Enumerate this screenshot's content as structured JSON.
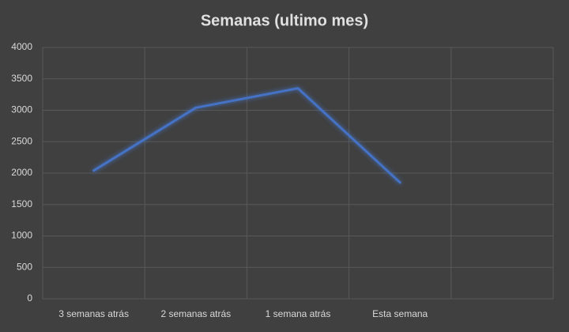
{
  "chart_data": {
    "type": "line",
    "title": "Semanas (ultimo mes)",
    "categories": [
      "3 semanas atrás",
      "2 semanas atrás",
      "1 semana atrás",
      "Esta semana",
      null
    ],
    "series": [
      {
        "name": "Semanas",
        "color": "#4472c4",
        "values": [
          2040,
          3040,
          3350,
          1850,
          null
        ]
      }
    ],
    "ylim": [
      0,
      4000
    ],
    "yticks": [
      0,
      500,
      1000,
      1500,
      2000,
      2500,
      3000,
      3500,
      4000
    ],
    "grid": true
  }
}
